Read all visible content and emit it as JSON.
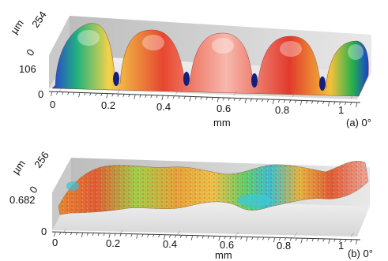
{
  "panels": [
    {
      "caption": "(a) 0°",
      "z_unit": "µm",
      "z_top": "254",
      "z_mid": "0",
      "z_low": "106",
      "origin": "0",
      "x_unit": "mm",
      "x_ticks": [
        "0",
        "0.2",
        "0.4",
        "0.6",
        "0.8",
        "1"
      ]
    },
    {
      "caption": "(b) 0°",
      "z_unit": "µm",
      "z_top": "256",
      "z_mid": "0",
      "z_low": "0.682",
      "origin": "0",
      "x_unit": "mm",
      "x_ticks": [
        "0",
        "0.2",
        "0.4",
        "0.6",
        "0.8",
        "1"
      ]
    }
  ],
  "colors": {
    "wall": "#cfcfcf",
    "floor": "#e6e6e6",
    "surface_hi": "#e0392b",
    "surface_mid": "#f3d34a",
    "surface_low": "#2bb34a",
    "surface_valley": "#1f4fd6"
  }
}
